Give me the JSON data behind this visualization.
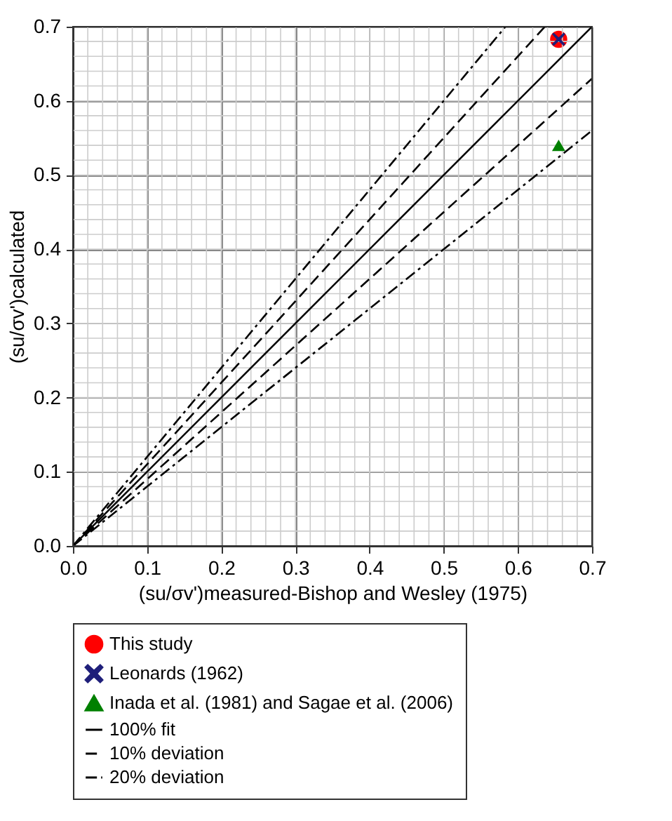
{
  "chart_data": {
    "type": "scatter",
    "xlabel": "(su/σv')measured-Bishop and Wesley (1975)",
    "ylabel": "(su/σv')calculated",
    "xlim": [
      0,
      0.7
    ],
    "ylim": [
      0,
      0.7
    ],
    "xticks": [
      {
        "value": 0,
        "label": "0.0"
      },
      0.1,
      0.2,
      0.3,
      0.4,
      0.5,
      0.6,
      0.7
    ],
    "yticks": [
      {
        "value": 0,
        "label": "0.0"
      },
      0.1,
      0.2,
      0.3,
      0.4,
      0.5,
      0.6,
      0.7
    ],
    "grid": true,
    "legend": "bottom",
    "series": [
      {
        "name": "This study",
        "marker": "circle",
        "color": "#ff0000",
        "x": [
          0.655
        ],
        "values": [
          0.683
        ]
      },
      {
        "name": "Leonards (1962)",
        "marker": "cross",
        "color": "#1f1f7a",
        "x": [
          0.655
        ],
        "values": [
          0.683
        ]
      },
      {
        "name": "Inada et al. (1981) and Sagae et al. (2006)",
        "marker": "triangle",
        "color": "#008000",
        "x": [
          0.655
        ],
        "values": [
          0.54
        ]
      },
      {
        "name": "100% fit",
        "type": "line",
        "line_style": "solid",
        "color": "#000000",
        "x": [
          0,
          0.7
        ],
        "values": [
          0,
          0.7
        ]
      },
      {
        "name": "10% deviation",
        "type": "line",
        "line_style": "dashed",
        "color": "#000000",
        "x": [
          0,
          0.6364
        ],
        "values": [
          0,
          0.7
        ]
      },
      {
        "type": "line",
        "line_style": "dashed",
        "color": "#000000",
        "x": [
          0,
          0.7
        ],
        "values": [
          0,
          0.63
        ]
      },
      {
        "name": "20% deviation",
        "type": "line",
        "line_style": "dashdot",
        "color": "#000000",
        "x": [
          0,
          0.5833
        ],
        "values": [
          0,
          0.7
        ]
      },
      {
        "type": "line",
        "line_style": "dashdot",
        "color": "#000000",
        "x": [
          0,
          0.7
        ],
        "values": [
          0,
          0.56
        ]
      }
    ]
  }
}
